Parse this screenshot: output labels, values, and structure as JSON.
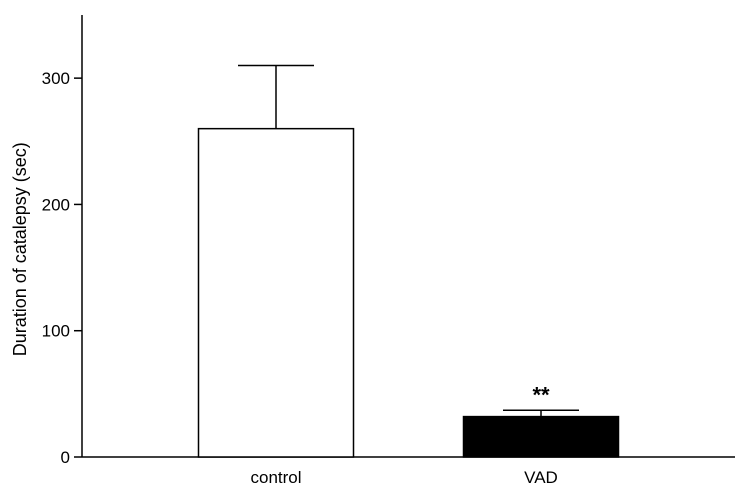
{
  "chart_data": {
    "type": "bar",
    "title": "",
    "xlabel": "",
    "ylabel": "Duration of catalepsy (sec)",
    "ylim": [
      0,
      350
    ],
    "yticks": [
      0,
      100,
      200,
      300
    ],
    "categories": [
      "control",
      "VAD"
    ],
    "values": [
      260,
      32
    ],
    "errors": [
      50,
      5
    ],
    "bar_fill": [
      "#ffffff",
      "#000000"
    ],
    "bar_stroke": "#000000",
    "annotations": [
      "",
      "**"
    ],
    "grid": false,
    "legend": "none"
  }
}
